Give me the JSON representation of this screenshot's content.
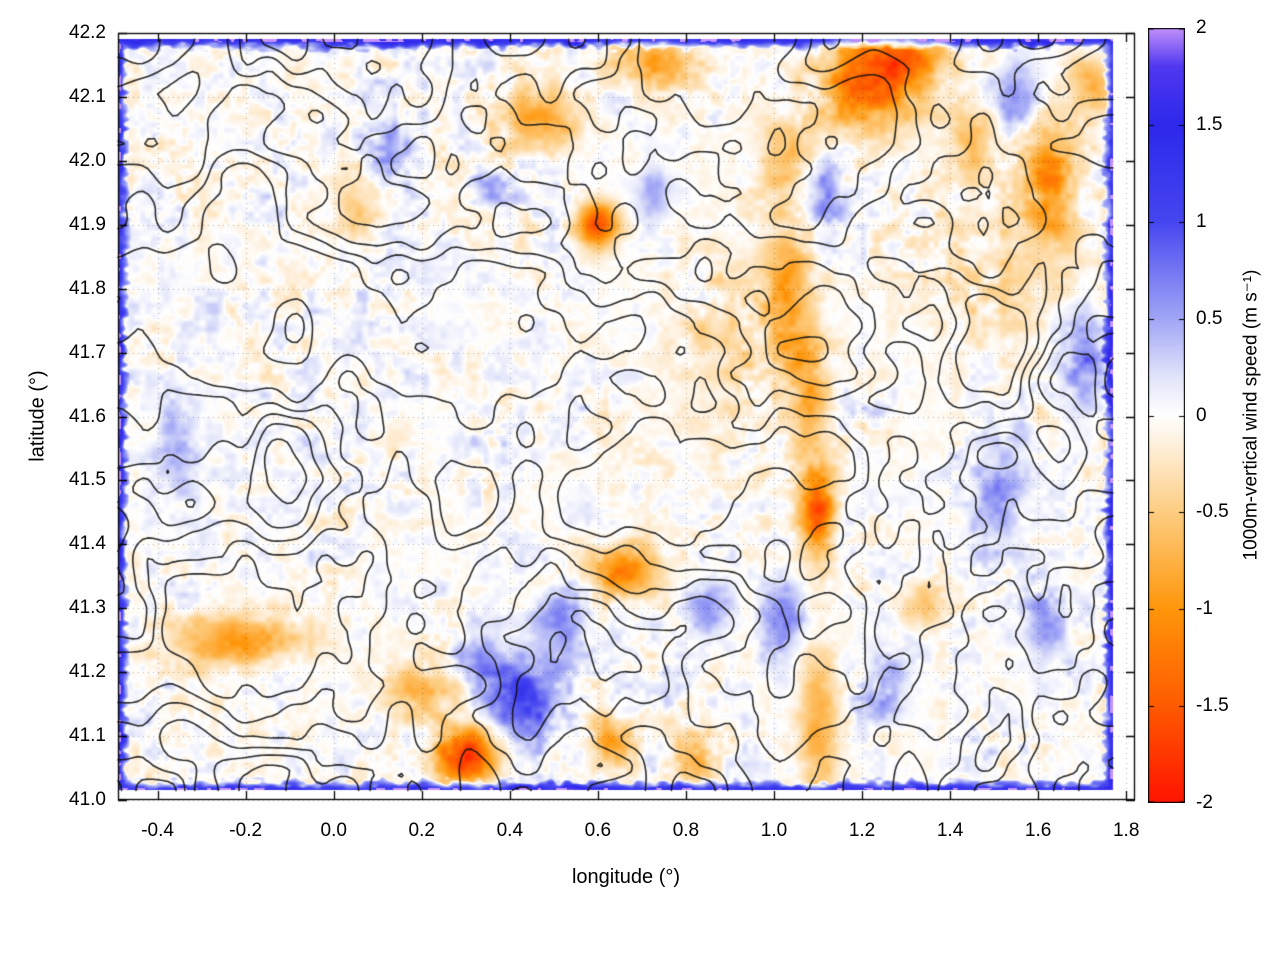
{
  "chart_data": {
    "type": "heatmap",
    "title": "",
    "xlabel": "longitude (°)",
    "ylabel": "latitude (°)",
    "xlim": [
      -0.49,
      1.82
    ],
    "ylim": [
      41.0,
      42.2
    ],
    "grid": true,
    "x_ticks": [
      -0.4,
      -0.2,
      0.0,
      0.2,
      0.4,
      0.6,
      0.8,
      1.0,
      1.2,
      1.4,
      1.6,
      1.8
    ],
    "x_tick_labels": [
      "-0.4",
      "-0.2",
      "0.0",
      "0.2",
      "0.4",
      "0.6",
      "0.8",
      "1.0",
      "1.2",
      "1.4",
      "1.6",
      "1.8"
    ],
    "y_ticks": [
      41.0,
      41.1,
      41.2,
      41.3,
      41.4,
      41.5,
      41.6,
      41.7,
      41.8,
      41.9,
      42.0,
      42.1,
      42.2
    ],
    "y_tick_labels": [
      "41.0",
      "41.1",
      "41.2",
      "41.3",
      "41.4",
      "41.5",
      "41.6",
      "41.7",
      "41.8",
      "41.9",
      "42.0",
      "42.1",
      "42.2"
    ],
    "colorbar": {
      "label": "1000m-vertical wind speed (m s⁻¹)",
      "range": [
        -2,
        2
      ],
      "ticks": [
        2,
        1.5,
        1,
        0.5,
        0,
        -0.5,
        -1,
        -1.5,
        -2
      ],
      "tick_labels": [
        "2",
        "1.5",
        "1",
        "0.5",
        "0",
        "-0.5",
        "-1",
        "-1.5",
        "-2"
      ],
      "palette": [
        {
          "v": -2.0,
          "c": "#ff1400"
        },
        {
          "v": -1.5,
          "c": "#ff5a00"
        },
        {
          "v": -1.0,
          "c": "#ff960a"
        },
        {
          "v": -0.5,
          "c": "#fdcd82"
        },
        {
          "v": -0.15,
          "c": "#fef0dc"
        },
        {
          "v": 0.0,
          "c": "#ffffff"
        },
        {
          "v": 0.2,
          "c": "#e1e4fa"
        },
        {
          "v": 0.5,
          "c": "#a0a5f5"
        },
        {
          "v": 1.0,
          "c": "#4646f0"
        },
        {
          "v": 1.5,
          "c": "#2d28eb"
        },
        {
          "v": 1.8,
          "c": "#5038f0"
        },
        {
          "v": 2.0,
          "c": "#c391fc"
        }
      ]
    },
    "data_extent": {
      "lon": [
        -0.49,
        1.77
      ],
      "lat": [
        41.015,
        42.19
      ]
    },
    "overlay": "terrain elevation contours (black lines)",
    "contour_levels": [
      0.3,
      0.39,
      0.48,
      0.57,
      0.66,
      0.75
    ],
    "edge_band": {
      "value": 1.5,
      "note": "strong positive (blue, locally purple) band along all domain boundaries"
    },
    "features": {
      "negative_patches": [
        [
          0.6,
          41.9,
          0.045,
          0.035,
          -1.6
        ],
        [
          0.47,
          42.07,
          0.1,
          0.05,
          -0.8
        ],
        [
          0.74,
          42.16,
          0.09,
          0.04,
          -0.9
        ],
        [
          1.22,
          42.12,
          0.12,
          0.07,
          -1.3
        ],
        [
          1.3,
          42.17,
          0.1,
          0.04,
          -1.0
        ],
        [
          1.02,
          42.0,
          0.05,
          0.06,
          -0.7
        ],
        [
          1.45,
          42.03,
          0.05,
          0.05,
          -0.6
        ],
        [
          1.63,
          41.97,
          0.05,
          0.09,
          -1.0
        ],
        [
          1.72,
          42.12,
          0.05,
          0.04,
          -0.8
        ],
        [
          1.03,
          41.8,
          0.05,
          0.1,
          -0.85
        ],
        [
          1.08,
          41.63,
          0.04,
          0.09,
          -0.7
        ],
        [
          1.1,
          41.45,
          0.04,
          0.07,
          -1.5
        ],
        [
          0.66,
          41.36,
          0.08,
          0.04,
          -1.1
        ],
        [
          -0.22,
          41.25,
          0.15,
          0.04,
          -1.0
        ],
        [
          0.2,
          41.17,
          0.08,
          0.04,
          -0.75
        ],
        [
          0.3,
          41.07,
          0.065,
          0.045,
          -1.8
        ],
        [
          0.63,
          41.09,
          0.05,
          0.04,
          -0.9
        ],
        [
          0.82,
          41.06,
          0.05,
          0.04,
          -0.7
        ],
        [
          1.1,
          41.12,
          0.045,
          0.12,
          -0.75
        ],
        [
          0.93,
          41.7,
          0.15,
          0.15,
          -0.35
        ],
        [
          1.55,
          41.85,
          0.2,
          0.15,
          -0.3
        ],
        [
          1.35,
          41.3,
          0.05,
          0.04,
          -0.5
        ],
        [
          0.05,
          41.93,
          0.05,
          0.05,
          -0.5
        ],
        [
          1.78,
          41.55,
          0.03,
          0.07,
          -0.6
        ]
      ],
      "positive_patches": [
        [
          0.43,
          41.16,
          0.09,
          0.06,
          1.1
        ],
        [
          0.52,
          41.28,
          0.06,
          0.05,
          0.7
        ],
        [
          0.33,
          41.22,
          0.05,
          0.04,
          0.6
        ],
        [
          1.02,
          41.28,
          0.05,
          0.06,
          0.7
        ],
        [
          1.12,
          41.95,
          0.04,
          0.05,
          0.6
        ],
        [
          1.5,
          41.48,
          0.06,
          0.09,
          0.6
        ],
        [
          1.7,
          41.7,
          0.05,
          0.08,
          0.7
        ],
        [
          0.12,
          42.02,
          0.05,
          0.06,
          0.55
        ],
        [
          0.35,
          41.96,
          0.04,
          0.04,
          0.5
        ],
        [
          -0.35,
          41.55,
          0.05,
          0.08,
          0.45
        ],
        [
          0.85,
          41.3,
          0.05,
          0.04,
          0.6
        ],
        [
          1.55,
          42.1,
          0.05,
          0.05,
          0.6
        ],
        [
          1.25,
          41.18,
          0.05,
          0.05,
          0.5
        ],
        [
          0.73,
          41.95,
          0.035,
          0.04,
          0.55
        ],
        [
          1.62,
          41.28,
          0.05,
          0.06,
          0.5
        ]
      ]
    }
  }
}
